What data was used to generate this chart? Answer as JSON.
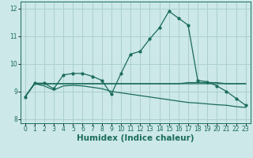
{
  "title": "",
  "xlabel": "Humidex (Indice chaleur)",
  "ylabel": "",
  "bg_color": "#cce8e8",
  "grid_color": "#aacfcf",
  "line_color": "#1a6b5a",
  "xlim": [
    -0.5,
    23.5
  ],
  "ylim": [
    7.85,
    12.25
  ],
  "yticks": [
    8,
    9,
    10,
    11,
    12
  ],
  "xticks": [
    0,
    1,
    2,
    3,
    4,
    5,
    6,
    7,
    8,
    9,
    10,
    11,
    12,
    13,
    14,
    15,
    16,
    17,
    18,
    19,
    20,
    21,
    22,
    23
  ],
  "series": [
    {
      "x": [
        0,
        1,
        2,
        3,
        4,
        5,
        6,
        7,
        8,
        9,
        10,
        11,
        12,
        13,
        14,
        15,
        16,
        17,
        18,
        19,
        20,
        21,
        22,
        23
      ],
      "y": [
        8.8,
        9.3,
        9.3,
        9.1,
        9.6,
        9.65,
        9.65,
        9.55,
        9.4,
        8.9,
        9.65,
        10.35,
        10.45,
        10.9,
        11.3,
        11.9,
        11.65,
        11.4,
        9.4,
        9.35,
        9.2,
        9.0,
        8.75,
        8.5
      ],
      "marker": true
    },
    {
      "x": [
        0,
        1,
        2,
        3,
        4,
        5,
        6,
        7,
        8,
        9,
        10,
        11,
        12,
        13,
        14,
        15,
        16,
        17,
        18,
        19,
        20,
        21,
        22,
        23
      ],
      "y": [
        8.8,
        9.28,
        9.28,
        9.28,
        9.28,
        9.28,
        9.28,
        9.28,
        9.28,
        9.28,
        9.28,
        9.28,
        9.28,
        9.28,
        9.28,
        9.28,
        9.28,
        9.28,
        9.28,
        9.28,
        9.28,
        9.28,
        9.28,
        9.28
      ],
      "marker": false
    },
    {
      "x": [
        0,
        1,
        2,
        3,
        4,
        5,
        6,
        7,
        8,
        9,
        10,
        11,
        12,
        13,
        14,
        15,
        16,
        17,
        18,
        19,
        20,
        21,
        22,
        23
      ],
      "y": [
        8.8,
        9.28,
        9.2,
        9.05,
        9.2,
        9.22,
        9.2,
        9.15,
        9.1,
        9.0,
        8.95,
        8.9,
        8.85,
        8.8,
        8.75,
        8.7,
        8.65,
        8.6,
        8.58,
        8.55,
        8.52,
        8.5,
        8.45,
        8.42
      ],
      "marker": false
    },
    {
      "x": [
        0,
        1,
        2,
        3,
        4,
        5,
        6,
        7,
        8,
        9,
        10,
        11,
        12,
        13,
        14,
        15,
        16,
        17,
        18,
        19,
        20,
        21,
        22,
        23
      ],
      "y": [
        8.8,
        9.28,
        9.28,
        9.28,
        9.28,
        9.28,
        9.28,
        9.28,
        9.28,
        9.28,
        9.28,
        9.28,
        9.28,
        9.28,
        9.28,
        9.28,
        9.28,
        9.32,
        9.32,
        9.32,
        9.32,
        9.28,
        9.28,
        9.28
      ],
      "marker": false
    }
  ],
  "tick_fontsize": 5.5,
  "label_fontsize": 7.5,
  "figsize": [
    3.2,
    2.0
  ],
  "dpi": 100
}
